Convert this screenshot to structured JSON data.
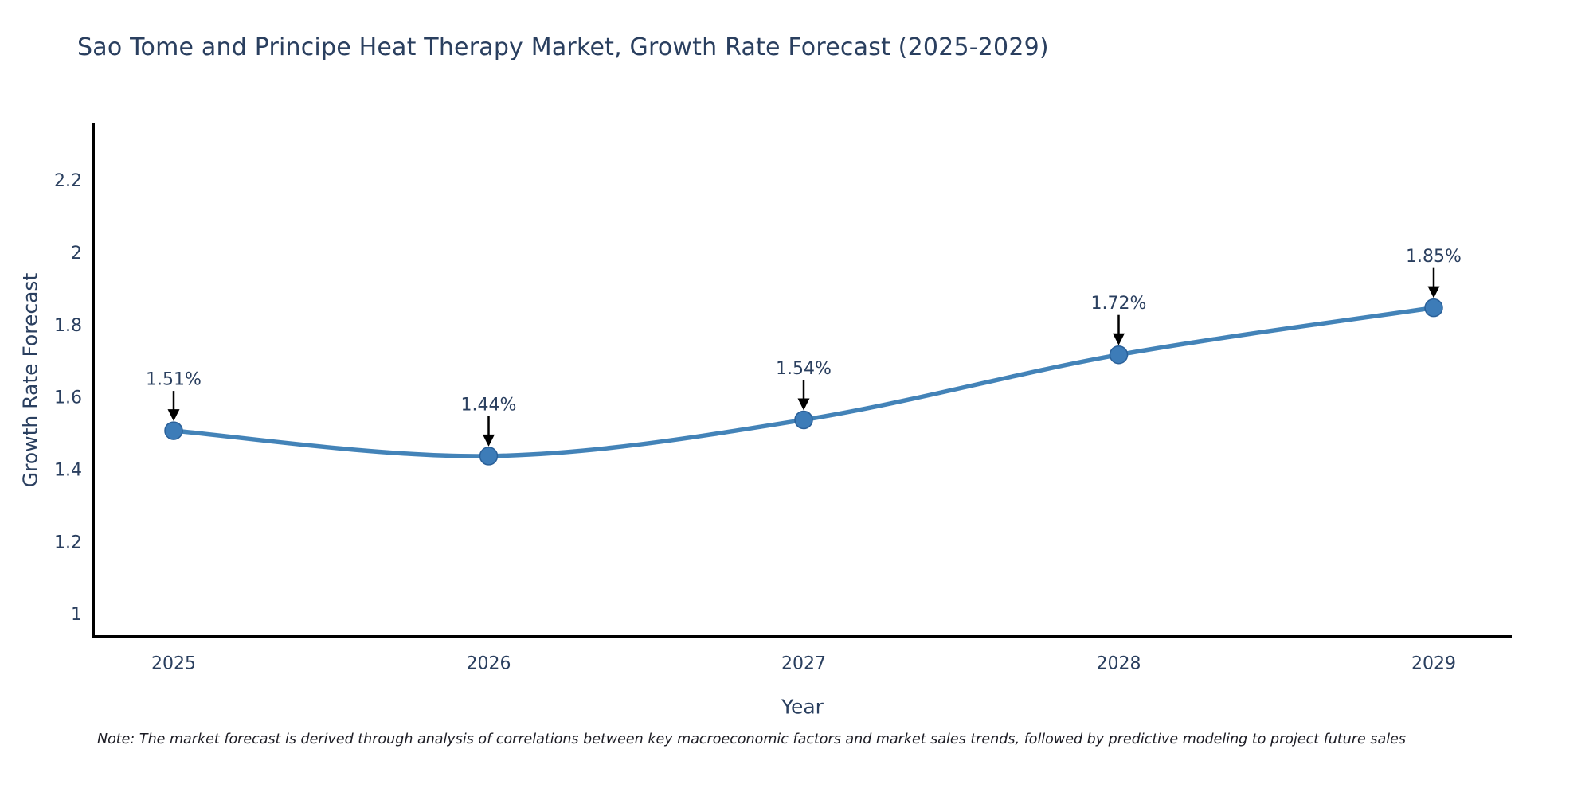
{
  "title": "Sao Tome and Principe Heat Therapy Market, Growth Rate Forecast (2025-2029)",
  "note": "Note: The market forecast is derived through analysis of correlations between key macroeconomic factors and market sales trends, followed by predictive modeling to project future sales",
  "chart_data": {
    "type": "line",
    "title": "Sao Tome and Principe Heat Therapy Market, Growth Rate Forecast (2025-2029)",
    "x": [
      "2025",
      "2026",
      "2027",
      "2028",
      "2029"
    ],
    "series": [
      {
        "name": "Growth Rate Forecast",
        "values": [
          1.51,
          1.44,
          1.54,
          1.72,
          1.85
        ]
      }
    ],
    "point_labels": [
      "1.51%",
      "1.44%",
      "1.54%",
      "1.72%",
      "1.85%"
    ],
    "xlabel": "Year",
    "ylabel": "Growth Rate Forecast",
    "ytick_labels": [
      "1",
      "1.2",
      "1.4",
      "1.6",
      "1.8",
      "2",
      "2.2"
    ],
    "ytick_values": [
      1,
      1.2,
      1.4,
      1.6,
      1.8,
      2,
      2.2
    ],
    "ylim": [
      0.94,
      2.36
    ],
    "line_shape": "spline",
    "grid": false,
    "legend_position": "none",
    "annotations_have_arrows": true,
    "colors": {
      "line": "#4383b8",
      "marker_fill": "#3d7cb8",
      "marker_edge": "#2a6099",
      "axis": "#000000",
      "text": "#2a3f5f",
      "annotation_arrow": "#000000"
    }
  }
}
